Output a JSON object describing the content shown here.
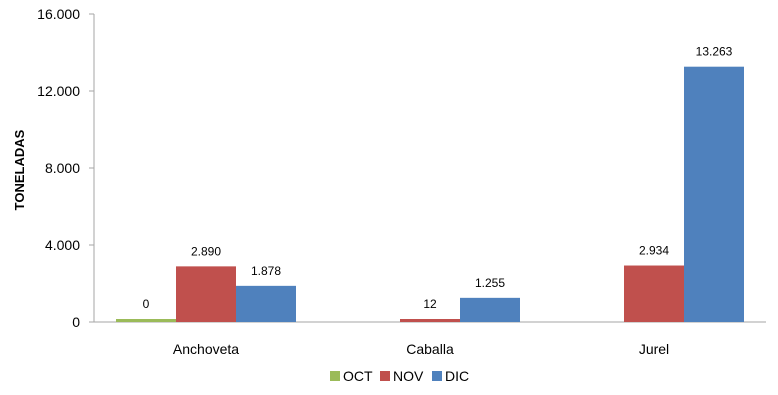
{
  "chart_data": {
    "type": "bar",
    "title": "",
    "xlabel": "",
    "ylabel": "TONELADAS",
    "ylim": [
      0,
      16000
    ],
    "yticks": [
      0,
      4000,
      8000,
      12000,
      16000
    ],
    "ytick_labels": [
      "0",
      "4.000",
      "8.000",
      "12.000",
      "16.000"
    ],
    "grid": false,
    "legend_position": "bottom",
    "categories": [
      "Anchoveta",
      "Caballa",
      "Jurel"
    ],
    "series": [
      {
        "name": "OCT",
        "color": "#9bbb59",
        "values": [
          0,
          0,
          0
        ],
        "labels": [
          "0",
          "",
          ""
        ]
      },
      {
        "name": "NOV",
        "color": "#c0504d",
        "values": [
          2890,
          12,
          2934
        ],
        "labels": [
          "2.890",
          "12",
          "2.934"
        ]
      },
      {
        "name": "DIC",
        "color": "#4f81bd",
        "values": [
          1878,
          1255,
          13263
        ],
        "labels": [
          "1.878",
          "1.255",
          "13.263"
        ]
      }
    ]
  }
}
